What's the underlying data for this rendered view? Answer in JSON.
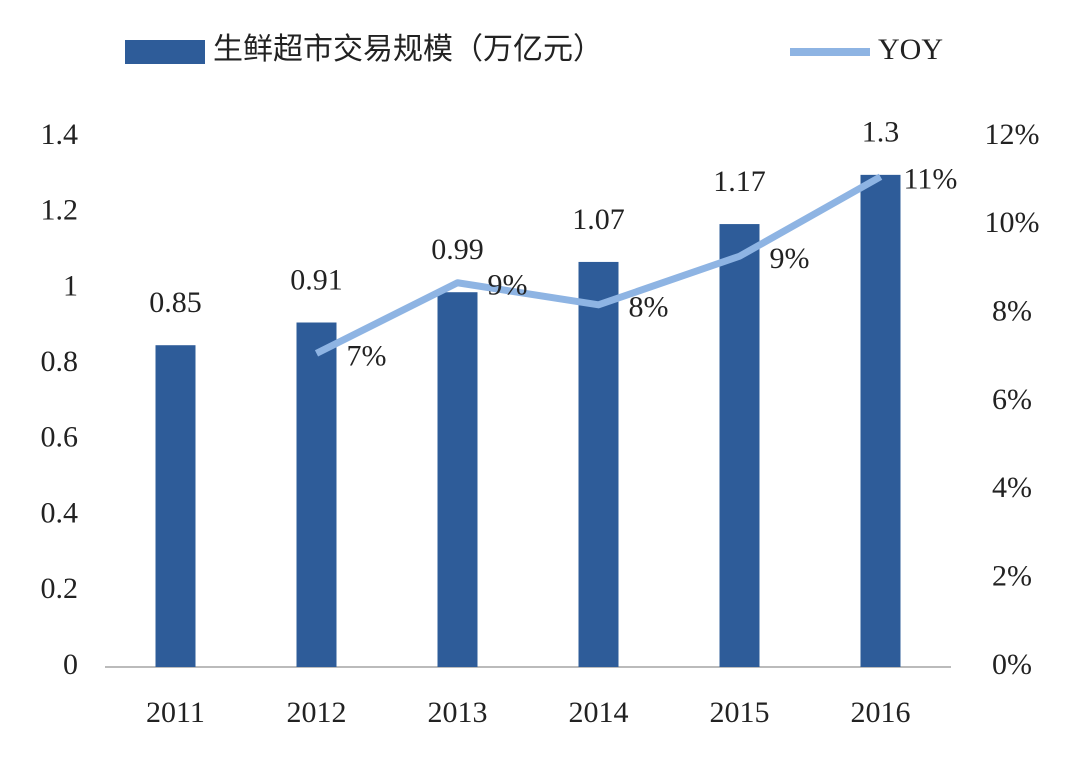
{
  "chart_data": {
    "type": "bar",
    "categories": [
      "2011",
      "2012",
      "2013",
      "2014",
      "2015",
      "2016"
    ],
    "series": [
      {
        "name": "生鲜超市交易规模（万亿元）",
        "type": "bar",
        "color": "#2e5c99",
        "values": [
          0.85,
          0.91,
          0.99,
          1.07,
          1.17,
          1.3
        ]
      },
      {
        "name": "YOY",
        "type": "line",
        "axis": "y2",
        "color": "#8eb4e3",
        "values": [
          null,
          7.1,
          8.7,
          8.2,
          9.3,
          11.1
        ],
        "value_labels": [
          null,
          "7%",
          "9%",
          "8%",
          "9%",
          "11%"
        ]
      }
    ],
    "ylim": [
      0,
      1.4
    ],
    "yticks": [
      0,
      0.2,
      0.4,
      0.6,
      0.8,
      1,
      1.2,
      1.4
    ],
    "y2lim": [
      0,
      12
    ],
    "y2ticks": [
      {
        "value": 0,
        "label": "0%"
      },
      {
        "value": 2,
        "label": "2%"
      },
      {
        "value": 4,
        "label": "4%"
      },
      {
        "value": 6,
        "label": "6%"
      },
      {
        "value": 8,
        "label": "8%"
      },
      {
        "value": 10,
        "label": "10%"
      },
      {
        "value": 12,
        "label": "12%"
      }
    ],
    "grid": false,
    "legend": "top"
  }
}
